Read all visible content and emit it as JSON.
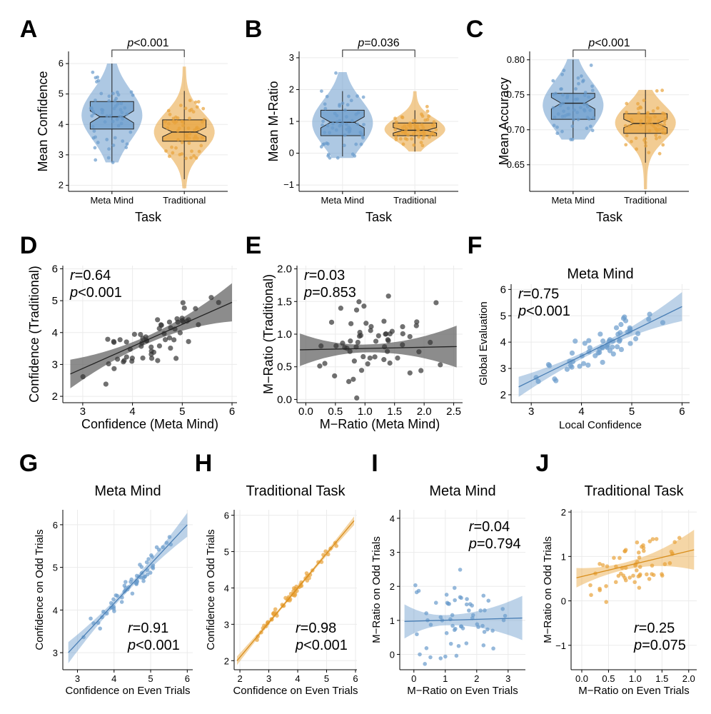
{
  "colors": {
    "blue": "#6a9bcc",
    "orange": "#e8a33a",
    "gray": "#555555",
    "blue_dark": "#4a7fb5",
    "orange_dark": "#d98e1c"
  },
  "panels": [
    {
      "id": "A",
      "kind": "violin",
      "ylabel": "Mean Confidence",
      "xlabel": "Task",
      "ylim": [
        1.8,
        6.4
      ],
      "yticks": [
        2,
        3,
        4,
        5,
        6
      ],
      "ytick_labels": [
        "2",
        "3",
        "4",
        "5",
        "6"
      ],
      "groups": [
        {
          "name": "Meta Mind",
          "color": "blue",
          "q1": 3.85,
          "median": 4.25,
          "q3": 4.75,
          "whisker_low": 2.75,
          "whisker_high": 6.0,
          "min": 2.75,
          "max": 6.0,
          "center": 4.3
        },
        {
          "name": "Traditional",
          "color": "orange",
          "q1": 3.45,
          "median": 3.75,
          "q3": 4.15,
          "whisker_low": 2.2,
          "whisker_high": 5.1,
          "min": 1.9,
          "max": 5.9,
          "center": 3.75
        }
      ],
      "annotation": "p<0.001",
      "annotation_italic": "p",
      "annotation_rest": "<0.001",
      "bracket_y": 6.5
    },
    {
      "id": "B",
      "kind": "violin",
      "ylabel": "Mean M-Ratio",
      "xlabel": "Task",
      "ylim": [
        -1.2,
        3.2
      ],
      "yticks": [
        -1,
        0,
        1,
        2,
        3
      ],
      "ytick_labels": [
        "−1",
        "0",
        "1",
        "2",
        "3"
      ],
      "groups": [
        {
          "name": "Meta Mind",
          "color": "blue",
          "q1": 0.55,
          "median": 0.97,
          "q3": 1.35,
          "whisker_low": -0.1,
          "whisker_high": 1.95,
          "min": -0.15,
          "max": 2.55,
          "center": 0.95
        },
        {
          "name": "Traditional",
          "color": "orange",
          "q1": 0.55,
          "median": 0.72,
          "q3": 0.95,
          "whisker_low": 0.05,
          "whisker_high": 1.35,
          "min": 0.05,
          "max": 1.95,
          "center": 0.75
        }
      ],
      "annotation": "p=0.036",
      "annotation_italic": "p",
      "annotation_rest": "=0.036",
      "bracket_y": 2.85
    },
    {
      "id": "C",
      "kind": "violin",
      "ylabel": "Mean Accuracy",
      "xlabel": "Task",
      "ylim": [
        0.612,
        0.812
      ],
      "yticks": [
        0.65,
        0.7,
        0.75,
        0.8
      ],
      "ytick_labels": [
        "0.65",
        "0.70",
        "0.75",
        "0.80"
      ],
      "groups": [
        {
          "name": "Meta Mind",
          "color": "blue",
          "q1": 0.715,
          "median": 0.738,
          "q3": 0.752,
          "whisker_low": 0.688,
          "whisker_high": 0.8,
          "min": 0.686,
          "max": 0.801,
          "center": 0.735
        },
        {
          "name": "Traditional",
          "color": "orange",
          "q1": 0.695,
          "median": 0.709,
          "q3": 0.723,
          "whisker_low": 0.653,
          "whisker_high": 0.757,
          "min": 0.615,
          "max": 0.757,
          "center": 0.71
        }
      ],
      "annotation": "p<0.001",
      "annotation_italic": "p",
      "annotation_rest": "<0.001",
      "bracket_y": 0.822
    },
    {
      "id": "D",
      "kind": "scatter",
      "color": "gray",
      "xlabel": "Confidence (Meta Mind)",
      "ylabel": "Confidence (Traditional)",
      "title": "",
      "xlim": [
        2.6,
        6.1
      ],
      "ylim": [
        1.8,
        6.1
      ],
      "xticks": [
        3,
        4,
        5,
        6
      ],
      "yticks": [
        2,
        3,
        4,
        5,
        6
      ],
      "fit": {
        "x0": 2.75,
        "y0": 2.7,
        "x1": 6.0,
        "y1": 4.95,
        "ci0": 0.45,
        "ci1": 0.6,
        "cimid": 0.12,
        "xmid": 4.3
      },
      "stat_r": "=0.64",
      "stat_p": "<0.001",
      "stat_pos": "top-left",
      "seed": 11,
      "n": 60,
      "noise": 0.45
    },
    {
      "id": "E",
      "kind": "scatter",
      "color": "gray",
      "xlabel": "M−Ratio (Meta Mind)",
      "ylabel": "M−Ratio (Traditional)",
      "title": "",
      "xlim": [
        -0.15,
        2.65
      ],
      "ylim": [
        -0.05,
        2.05
      ],
      "xticks": [
        0,
        0.5,
        1,
        1.5,
        2,
        2.5
      ],
      "xtick_labels": [
        "0.0",
        "0.5",
        "1.0",
        "1.5",
        "2.0",
        "2.5"
      ],
      "yticks": [
        0,
        0.5,
        1,
        1.5,
        2
      ],
      "ytick_labels": [
        "0.0",
        "0.5",
        "1.0",
        "1.5",
        "2.0"
      ],
      "fit": {
        "x0": -0.1,
        "y0": 0.76,
        "x1": 2.55,
        "y1": 0.81,
        "ci0": 0.25,
        "ci1": 0.32,
        "cimid": 0.06,
        "xmid": 1.0
      },
      "stat_r": "=0.03",
      "stat_p": "=0.853",
      "stat_pos": "top-left",
      "seed": 23,
      "n": 60,
      "noise": 0.42
    },
    {
      "id": "F",
      "kind": "scatter",
      "color": "blue",
      "xlabel": "Local Confidence",
      "ylabel": "Global Evaluation",
      "title": "Meta Mind",
      "xlim": [
        2.6,
        6.15
      ],
      "ylim": [
        1.7,
        6.2
      ],
      "xticks": [
        3,
        4,
        5,
        6
      ],
      "yticks": [
        2,
        3,
        4,
        5,
        6
      ],
      "fit": {
        "x0": 2.75,
        "y0": 2.3,
        "x1": 6.0,
        "y1": 5.35,
        "ci0": 0.38,
        "ci1": 0.55,
        "cimid": 0.1,
        "xmid": 4.3
      },
      "stat_r": "=0.75",
      "stat_p": "<0.001",
      "stat_pos": "top-left",
      "seed": 37,
      "n": 60,
      "noise": 0.4
    },
    {
      "id": "G",
      "kind": "scatter",
      "color": "blue",
      "xlabel": "Confidence on Even Trials",
      "ylabel": "Confidence on Odd Trials",
      "title": "Meta Mind",
      "xlim": [
        2.6,
        6.15
      ],
      "ylim": [
        2.6,
        6.35
      ],
      "xticks": [
        3,
        4,
        5,
        6
      ],
      "yticks": [
        3,
        4,
        5,
        6
      ],
      "fit": {
        "x0": 2.75,
        "y0": 3.0,
        "x1": 6.0,
        "y1": 6.0,
        "ci0": 0.25,
        "ci1": 0.28,
        "cimid": 0.06,
        "xmid": 4.3
      },
      "stat_r": "=0.91",
      "stat_p": "<0.001",
      "stat_pos": "bottom-right",
      "seed": 41,
      "n": 60,
      "noise": 0.18
    },
    {
      "id": "H",
      "kind": "scatter",
      "color": "orange",
      "xlabel": "Confidence on Even Trials",
      "ylabel": "Confidence on Odd Trials",
      "title": "Traditional Task",
      "xlim": [
        1.8,
        6.05
      ],
      "ylim": [
        1.75,
        6.15
      ],
      "xticks": [
        2,
        3,
        4,
        5,
        6
      ],
      "yticks": [
        2,
        3,
        4,
        5,
        6
      ],
      "fit": {
        "x0": 1.9,
        "y0": 2.0,
        "x1": 5.95,
        "y1": 5.85,
        "ci0": 0.12,
        "ci1": 0.12,
        "cimid": 0.04,
        "xmid": 3.8
      },
      "stat_r": "=0.98",
      "stat_p": "<0.001",
      "stat_pos": "bottom-right",
      "seed": 53,
      "n": 60,
      "noise": 0.08
    },
    {
      "id": "I",
      "kind": "scatter",
      "color": "blue",
      "xlabel": "M−Ratio on Even Trials",
      "ylabel": "M−Ratio on Odd Trials",
      "title": "Meta Mind",
      "xlim": [
        -0.45,
        3.55
      ],
      "ylim": [
        -0.45,
        4.25
      ],
      "xticks": [
        0,
        1,
        2,
        3
      ],
      "yticks": [
        0,
        1,
        2,
        3,
        4
      ],
      "fit": {
        "x0": -0.3,
        "y0": 0.97,
        "x1": 3.45,
        "y1": 1.07,
        "ci0": 0.5,
        "ci1": 0.65,
        "cimid": 0.15,
        "xmid": 1.0
      },
      "stat_r": "=0.04",
      "stat_p": "=0.794",
      "stat_pos": "top-right",
      "seed": 67,
      "n": 60,
      "noise": 0.75
    },
    {
      "id": "J",
      "kind": "scatter",
      "color": "orange",
      "xlabel": "M−Ratio on Even Trials",
      "ylabel": "M−Ratio on Odd Trials",
      "title": "Traditional Task",
      "xlim": [
        -0.2,
        2.15
      ],
      "ylim": [
        -1.55,
        2.05
      ],
      "xticks": [
        0,
        0.5,
        1,
        1.5,
        2
      ],
      "xtick_labels": [
        "0.0",
        "0.5",
        "1.0",
        "1.5",
        "2.0"
      ],
      "yticks": [
        -1,
        0,
        1,
        2
      ],
      "ytick_labels": [
        "−1",
        "0",
        "1",
        "2"
      ],
      "fit": {
        "x0": -0.1,
        "y0": 0.52,
        "x1": 2.1,
        "y1": 1.15,
        "ci0": 0.22,
        "ci1": 0.45,
        "cimid": 0.08,
        "xmid": 0.75
      },
      "stat_r": "=0.25",
      "stat_p": "=0.075",
      "stat_pos": "bottom-right",
      "seed": 79,
      "n": 60,
      "noise": 0.38
    }
  ],
  "chart_data": [
    {
      "type": "violin",
      "title": "A",
      "ylabel": "Mean Confidence",
      "xlabel": "Task",
      "categories": [
        "Meta Mind",
        "Traditional"
      ],
      "medians": [
        4.25,
        3.75
      ],
      "annotation": "p<0.001"
    },
    {
      "type": "violin",
      "title": "B",
      "ylabel": "Mean M-Ratio",
      "xlabel": "Task",
      "categories": [
        "Meta Mind",
        "Traditional"
      ],
      "medians": [
        0.97,
        0.72
      ],
      "annotation": "p=0.036"
    },
    {
      "type": "violin",
      "title": "C",
      "ylabel": "Mean Accuracy",
      "xlabel": "Task",
      "categories": [
        "Meta Mind",
        "Traditional"
      ],
      "medians": [
        0.738,
        0.709
      ],
      "annotation": "p<0.001"
    },
    {
      "type": "scatter",
      "title": "D",
      "xlabel": "Confidence (Meta Mind)",
      "ylabel": "Confidence (Traditional)",
      "r": 0.64,
      "p": "<0.001"
    },
    {
      "type": "scatter",
      "title": "E",
      "xlabel": "M−Ratio (Meta Mind)",
      "ylabel": "M−Ratio (Traditional)",
      "r": 0.03,
      "p": "0.853"
    },
    {
      "type": "scatter",
      "title": "F: Meta Mind",
      "xlabel": "Local Confidence",
      "ylabel": "Global Evaluation",
      "r": 0.75,
      "p": "<0.001"
    },
    {
      "type": "scatter",
      "title": "G: Meta Mind",
      "xlabel": "Confidence on Even Trials",
      "ylabel": "Confidence on Odd Trials",
      "r": 0.91,
      "p": "<0.001"
    },
    {
      "type": "scatter",
      "title": "H: Traditional Task",
      "xlabel": "Confidence on Even Trials",
      "ylabel": "Confidence on Odd Trials",
      "r": 0.98,
      "p": "<0.001"
    },
    {
      "type": "scatter",
      "title": "I: Meta Mind",
      "xlabel": "M−Ratio on Even Trials",
      "ylabel": "M−Ratio on Odd Trials",
      "r": 0.04,
      "p": "0.794"
    },
    {
      "type": "scatter",
      "title": "J: Traditional Task",
      "xlabel": "M−Ratio on Even Trials",
      "ylabel": "M−Ratio on Odd Trials",
      "r": 0.25,
      "p": "0.075"
    }
  ]
}
